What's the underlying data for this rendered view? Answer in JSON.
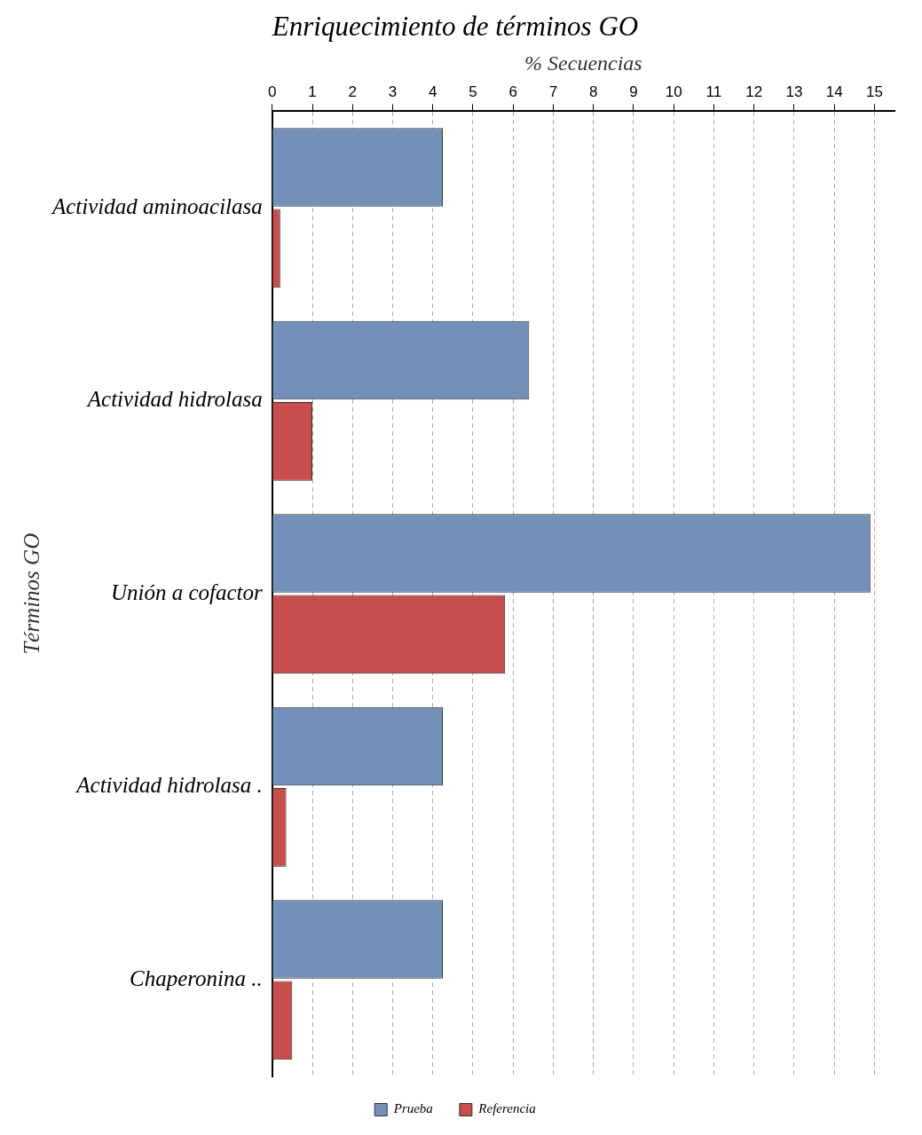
{
  "chart_data": {
    "type": "bar",
    "orientation": "horizontal",
    "title": "Enriquecimiento de términos GO",
    "xlabel": "% Secuencias",
    "ylabel": "Términos GO",
    "categories": [
      "Actividad aminoacilasa",
      "Actividad hidrolasa",
      "Unión a cofactor",
      "Actividad hidrolasa .",
      "Chaperonina .."
    ],
    "series": [
      {
        "name": "Prueba",
        "color": "#7390b8",
        "values": [
          4.25,
          6.4,
          14.9,
          4.25,
          4.25
        ]
      },
      {
        "name": "Referencia",
        "color": "#c84d4d",
        "values": [
          0.2,
          1.0,
          5.8,
          0.35,
          0.5
        ]
      }
    ],
    "xlim": [
      0,
      15.5
    ],
    "xticks": [
      0,
      1,
      2,
      3,
      4,
      5,
      6,
      7,
      8,
      9,
      10,
      11,
      12,
      13,
      14,
      15
    ],
    "grid": "x",
    "legend": "bottom"
  }
}
